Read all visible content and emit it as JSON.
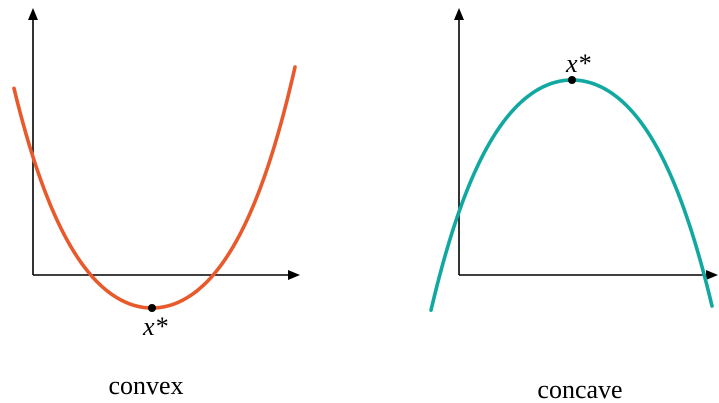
{
  "panels": [
    {
      "caption": "convex",
      "optimum_label": "x*",
      "curve_color": "#e8592c"
    },
    {
      "caption": "concave",
      "optimum_label": "x*",
      "curve_color": "#10a8a0"
    }
  ]
}
